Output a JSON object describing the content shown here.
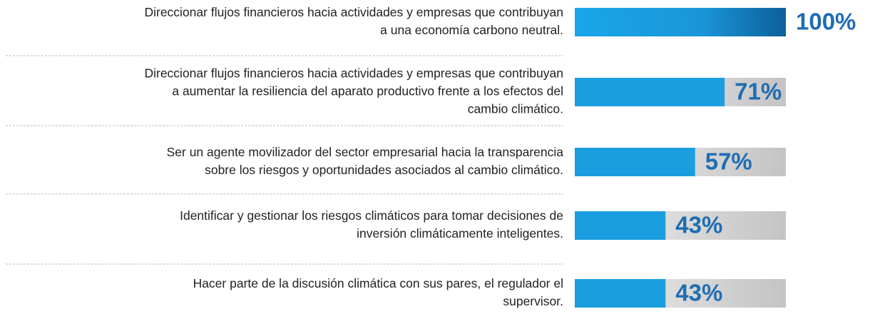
{
  "chart_data": {
    "type": "bar",
    "orientation": "horizontal",
    "categories": [
      [
        "Direccionar flujos financieros hacia actividades y empresas que contribuyan",
        "a una economía carbono neutral."
      ],
      [
        "Direccionar flujos financieros hacia actividades y empresas que contribuyan",
        "a aumentar la resiliencia del aparato productivo frente a los efectos del",
        "cambio climático."
      ],
      [
        "Ser un agente movilizador del sector empresarial hacia la transparencia",
        "sobre los riesgos y oportunidades asociados al cambio climático."
      ],
      [
        "Identificar y gestionar los riesgos climáticos para tomar decisiones de",
        "inversión climáticamente inteligentes."
      ],
      [
        "Hacer parte de la discusión climática con sus pares, el regulador el",
        "supervisor."
      ]
    ],
    "values": [
      100,
      71,
      57,
      43,
      43
    ],
    "value_labels": [
      "100%",
      "71%",
      "57%",
      "43%",
      "43%"
    ],
    "xlim": [
      0,
      100
    ],
    "color": "#1a9ee0"
  }
}
